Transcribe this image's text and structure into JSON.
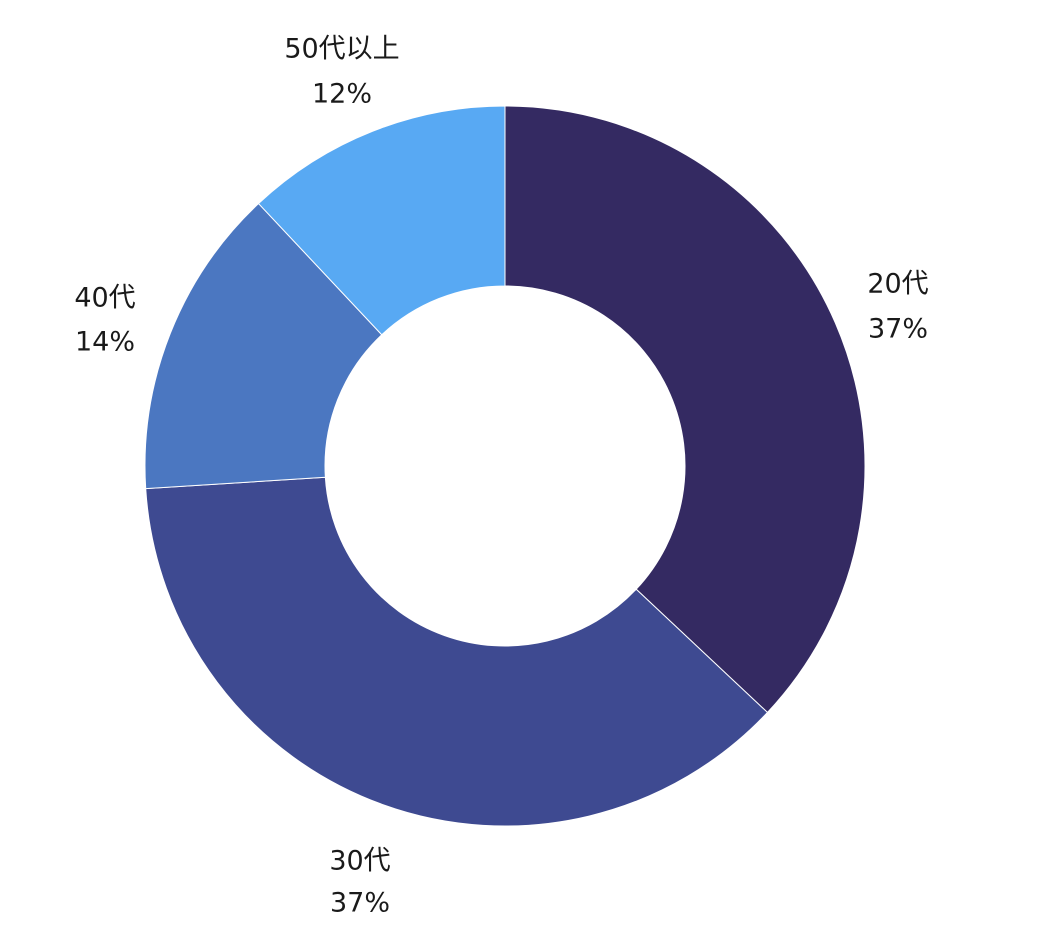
{
  "chart_data": {
    "type": "pie",
    "variant": "donut",
    "categories": [
      "20代",
      "30代",
      "40代",
      "50代以上"
    ],
    "values": [
      37,
      37,
      14,
      12
    ],
    "value_labels": [
      "37%",
      "37%",
      "14%",
      "12%"
    ],
    "colors": [
      "#342A62",
      "#3E4A91",
      "#4B77C1",
      "#58A9F3"
    ],
    "start": "12 o'clock",
    "direction": "clockwise",
    "legend": "none",
    "title": ""
  }
}
